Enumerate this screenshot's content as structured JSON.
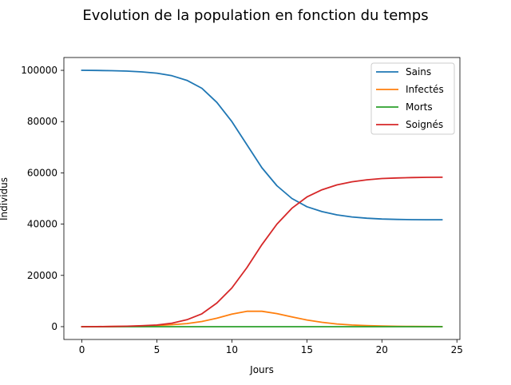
{
  "chart_data": {
    "type": "line",
    "title": "Evolution de la population en fonction du temps",
    "xlabel": "Jours",
    "ylabel": "Individus",
    "xlim": [
      -1.2,
      25.2
    ],
    "ylim": [
      -5000,
      105000
    ],
    "xticks": [
      0,
      5,
      10,
      15,
      20,
      25
    ],
    "yticks": [
      0,
      20000,
      40000,
      60000,
      80000,
      100000
    ],
    "legend_position": "top-right",
    "grid": false,
    "x": [
      0,
      1,
      2,
      3,
      4,
      5,
      6,
      7,
      8,
      9,
      10,
      11,
      12,
      13,
      14,
      15,
      16,
      17,
      18,
      19,
      20,
      21,
      22,
      23,
      24
    ],
    "series": [
      {
        "name": "Sains",
        "color": "#1f77b4",
        "values": [
          100000,
          99950,
          99850,
          99700,
          99400,
          98900,
          97900,
          96100,
          93000,
          87500,
          80000,
          71000,
          62000,
          55000,
          50000,
          46800,
          44900,
          43600,
          42800,
          42300,
          42000,
          41850,
          41750,
          41700,
          41700
        ]
      },
      {
        "name": "Infectés",
        "color": "#ff7f0e",
        "values": [
          0,
          20,
          60,
          120,
          250,
          450,
          750,
          1200,
          2000,
          3300,
          4900,
          6000,
          6000,
          5100,
          3800,
          2600,
          1700,
          1050,
          650,
          380,
          220,
          130,
          80,
          50,
          30
        ]
      },
      {
        "name": "Morts",
        "color": "#2ca02c",
        "values": [
          0,
          0,
          0,
          0,
          0,
          0,
          0,
          0,
          0,
          0,
          0,
          0,
          0,
          0,
          0,
          0,
          0,
          0,
          0,
          0,
          0,
          0,
          0,
          0,
          0
        ]
      },
      {
        "name": "Soignés",
        "color": "#d62728",
        "values": [
          0,
          30,
          90,
          180,
          350,
          650,
          1350,
          2700,
          5000,
          9200,
          15100,
          23000,
          32000,
          40000,
          46200,
          50600,
          53400,
          55300,
          56500,
          57300,
          57800,
          58000,
          58150,
          58250,
          58300
        ]
      }
    ]
  }
}
